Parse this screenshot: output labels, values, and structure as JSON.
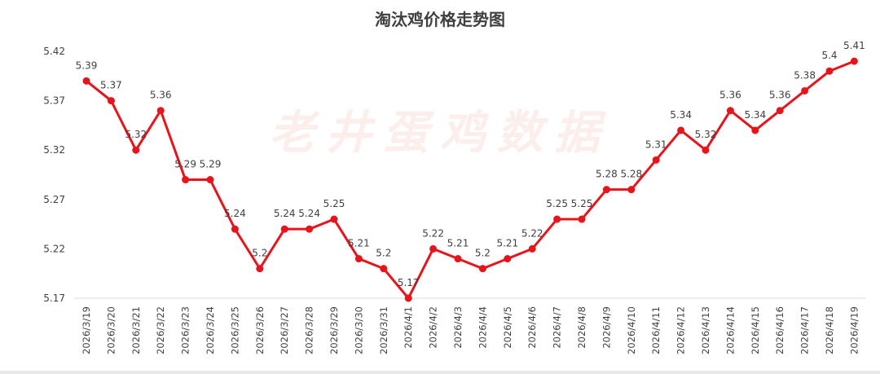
{
  "chart_data": {
    "type": "line",
    "title": "淘汰鸡价格走势图",
    "watermark": "老井蛋鸡数据",
    "xlabel": "",
    "ylabel": "",
    "ylim": [
      5.17,
      5.42
    ],
    "yticks": [
      "5.17",
      "5.22",
      "5.27",
      "5.32",
      "5.37",
      "5.42"
    ],
    "grid": false,
    "legend": "none",
    "colors": {
      "line": "#e8141b",
      "text": "#404040",
      "axis": "#d9d9d9"
    },
    "categories": [
      "2026/3/19",
      "2026/3/20",
      "2026/3/21",
      "2026/3/22",
      "2026/3/23",
      "2026/3/24",
      "2026/3/25",
      "2026/3/26",
      "2026/3/27",
      "2026/3/28",
      "2026/3/29",
      "2026/3/30",
      "2026/3/31",
      "2026/4/1",
      "2026/4/2",
      "2026/4/3",
      "2026/4/4",
      "2026/4/5",
      "2026/4/6",
      "2026/4/7",
      "2026/4/8",
      "2026/4/9",
      "2026/4/10",
      "2026/4/11",
      "2026/4/12",
      "2026/4/13",
      "2026/4/14",
      "2026/4/15",
      "2026/4/16",
      "2026/4/17",
      "2026/4/18",
      "2026/4/19"
    ],
    "values": [
      5.39,
      5.37,
      5.32,
      5.36,
      5.29,
      5.29,
      5.24,
      5.2,
      5.24,
      5.24,
      5.25,
      5.21,
      5.2,
      5.17,
      5.22,
      5.21,
      5.2,
      5.21,
      5.22,
      5.25,
      5.25,
      5.28,
      5.28,
      5.31,
      5.34,
      5.32,
      5.36,
      5.34,
      5.36,
      5.38,
      5.4,
      5.41
    ],
    "data_labels": [
      "5.39",
      "5.37",
      "5.32",
      "5.36",
      "5.29",
      "5.29",
      "5.24",
      "5.2",
      "5.24",
      "5.24",
      "5.25",
      "5.21",
      "5.2",
      "5.17",
      "5.22",
      "5.21",
      "5.2",
      "5.21",
      "5.22",
      "5.25",
      "5.25",
      "5.28",
      "5.28",
      "5.31",
      "5.34",
      "5.32",
      "5.36",
      "5.34",
      "5.36",
      "5.38",
      "5.4",
      "5.41"
    ]
  }
}
